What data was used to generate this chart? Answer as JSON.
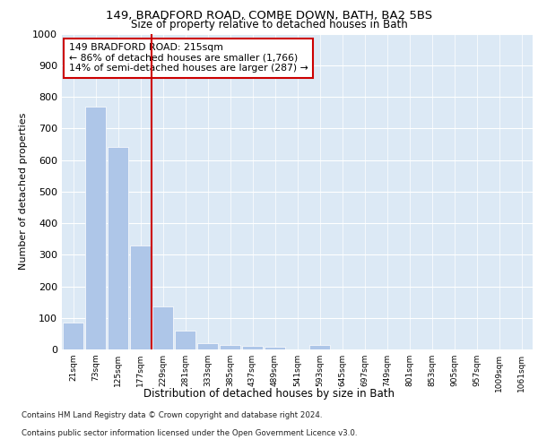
{
  "title_line1": "149, BRADFORD ROAD, COMBE DOWN, BATH, BA2 5BS",
  "title_line2": "Size of property relative to detached houses in Bath",
  "xlabel": "Distribution of detached houses by size in Bath",
  "ylabel": "Number of detached properties",
  "bar_labels": [
    "21sqm",
    "73sqm",
    "125sqm",
    "177sqm",
    "229sqm",
    "281sqm",
    "333sqm",
    "385sqm",
    "437sqm",
    "489sqm",
    "541sqm",
    "593sqm",
    "645sqm",
    "697sqm",
    "749sqm",
    "801sqm",
    "853sqm",
    "905sqm",
    "957sqm",
    "1009sqm",
    "1061sqm"
  ],
  "bar_values": [
    85,
    770,
    640,
    330,
    135,
    60,
    20,
    15,
    10,
    8,
    0,
    15,
    0,
    0,
    0,
    0,
    0,
    0,
    0,
    0,
    0
  ],
  "bar_color": "#aec6e8",
  "marker_line_color": "#cc0000",
  "annotation_text": "149 BRADFORD ROAD: 215sqm\n← 86% of detached houses are smaller (1,766)\n14% of semi-detached houses are larger (287) →",
  "annotation_box_facecolor": "#ffffff",
  "annotation_box_edgecolor": "#cc0000",
  "ylim": [
    0,
    1000
  ],
  "yticks": [
    0,
    100,
    200,
    300,
    400,
    500,
    600,
    700,
    800,
    900,
    1000
  ],
  "footer_line1": "Contains HM Land Registry data © Crown copyright and database right 2024.",
  "footer_line2": "Contains public sector information licensed under the Open Government Licence v3.0.",
  "fig_facecolor": "#ffffff",
  "plot_facecolor": "#dce9f5"
}
